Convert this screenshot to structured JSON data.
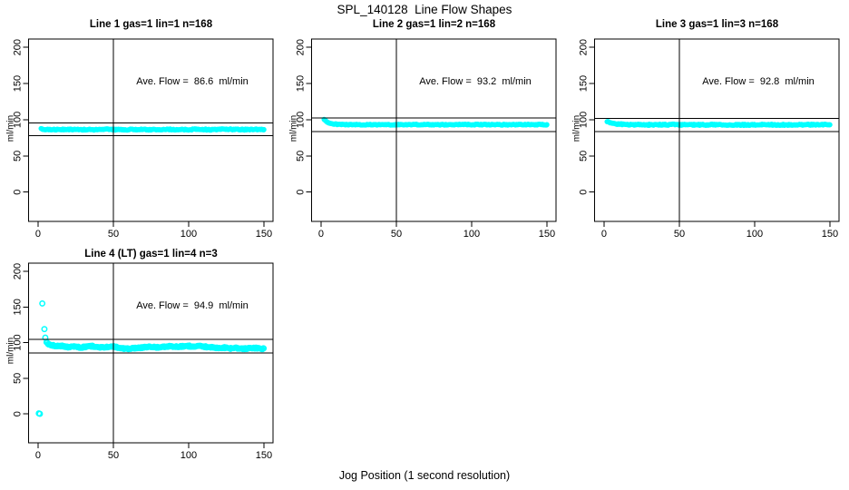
{
  "title": "SPL_140128  Line Flow Shapes",
  "xlabel": "Jog Position (1 second resolution)",
  "ylabel": "ml/min",
  "colors": {
    "points": "#00ffff",
    "axis": "#000000",
    "background": "#ffffff"
  },
  "chart_data": {
    "type": "scatter",
    "x_ticks": [
      0,
      50,
      100,
      150
    ],
    "y_ticks": [
      0,
      50,
      100,
      150,
      200
    ],
    "xlim": [
      -6.2,
      156.2
    ],
    "ylim": [
      -40.5,
      211.5
    ],
    "vline_x": 50,
    "point_color": "#00ffff",
    "grid": false,
    "panels": [
      {
        "id": "line-1",
        "title": "Line 1 gas=1 lin=1 n=168",
        "n": 168,
        "ave_flow": 86.6,
        "ave_flow_label": "Ave. Flow =  86.6  ml/min",
        "ref_lines": [
          95.3,
          77.9
        ],
        "outliers": [],
        "profile": [
          [
            2,
            88.5
          ],
          [
            3,
            86.5
          ],
          [
            5,
            86.2
          ],
          [
            15,
            86.4
          ],
          [
            25,
            86.7
          ],
          [
            35,
            86.2
          ],
          [
            45,
            86.6
          ],
          [
            55,
            86.2
          ],
          [
            65,
            86.6
          ],
          [
            75,
            86.3
          ],
          [
            85,
            86.7
          ],
          [
            95,
            86.2
          ],
          [
            105,
            86.6
          ],
          [
            115,
            86.3
          ],
          [
            125,
            86.7
          ],
          [
            135,
            86.3
          ],
          [
            145,
            86.6
          ],
          [
            150,
            86.4
          ]
        ]
      },
      {
        "id": "line-2",
        "title": "Line 2 gas=1 lin=2 n=168",
        "n": 168,
        "ave_flow": 93.2,
        "ave_flow_label": "Ave. Flow =  93.2  ml/min",
        "ref_lines": [
          102.5,
          83.9
        ],
        "outliers": [],
        "profile": [
          [
            2,
            101
          ],
          [
            3,
            98.5
          ],
          [
            4,
            96.8
          ],
          [
            5,
            95.6
          ],
          [
            6,
            94.8
          ],
          [
            8,
            94.2
          ],
          [
            10,
            93.8
          ],
          [
            14,
            93.4
          ],
          [
            20,
            93.2
          ],
          [
            35,
            93.2
          ],
          [
            50,
            93.1
          ],
          [
            65,
            93.3
          ],
          [
            80,
            93.1
          ],
          [
            95,
            93.3
          ],
          [
            110,
            93.2
          ],
          [
            125,
            93.1
          ],
          [
            140,
            93.3
          ],
          [
            150,
            93.2
          ]
        ]
      },
      {
        "id": "line-3",
        "title": "Line 3 gas=1 lin=3 n=168",
        "n": 168,
        "ave_flow": 92.8,
        "ave_flow_label": "Ave. Flow =  92.8  ml/min",
        "ref_lines": [
          102.1,
          83.5
        ],
        "outliers": [],
        "profile": [
          [
            2,
            98
          ],
          [
            3,
            96.8
          ],
          [
            4,
            95.8
          ],
          [
            6,
            94.8
          ],
          [
            8,
            94.2
          ],
          [
            12,
            93.6
          ],
          [
            18,
            93.2
          ],
          [
            30,
            93
          ],
          [
            45,
            93.2
          ],
          [
            60,
            92.9
          ],
          [
            75,
            93.1
          ],
          [
            90,
            92.8
          ],
          [
            105,
            93.2
          ],
          [
            120,
            92.9
          ],
          [
            135,
            93.1
          ],
          [
            150,
            93
          ]
        ]
      },
      {
        "id": "line-4",
        "title": "Line 4 (LT) gas=1 lin=4 n=3",
        "n": 3,
        "ave_flow": 94.9,
        "ave_flow_label": "Ave. Flow =  94.9  ml/min",
        "ref_lines": [
          104.4,
          85.4
        ],
        "outliers": [
          [
            0.5,
            0.8
          ],
          [
            1.2,
            0.2
          ],
          [
            2.8,
            155
          ],
          [
            4.2,
            119
          ],
          [
            4.8,
            107
          ]
        ],
        "profile": [
          [
            5.5,
            101.5
          ],
          [
            6.5,
            98.5
          ],
          [
            8,
            97
          ],
          [
            10,
            96
          ],
          [
            13,
            95
          ],
          [
            16,
            95.3
          ],
          [
            20,
            93.8
          ],
          [
            24,
            94.8
          ],
          [
            28,
            93.2
          ],
          [
            32,
            94.3
          ],
          [
            36,
            95
          ],
          [
            40,
            93.8
          ],
          [
            44,
            93.3
          ],
          [
            48,
            94.8
          ],
          [
            52,
            94
          ],
          [
            56,
            91.8
          ],
          [
            60,
            91.3
          ],
          [
            64,
            92.3
          ],
          [
            68,
            92.8
          ],
          [
            72,
            93.8
          ],
          [
            76,
            94.3
          ],
          [
            80,
            93.3
          ],
          [
            84,
            94.3
          ],
          [
            88,
            94.8
          ],
          [
            92,
            94.3
          ],
          [
            96,
            94.8
          ],
          [
            100,
            95.3
          ],
          [
            104,
            94.3
          ],
          [
            108,
            95.3
          ],
          [
            112,
            94
          ],
          [
            116,
            93.3
          ],
          [
            120,
            92.5
          ],
          [
            124,
            93
          ],
          [
            128,
            92
          ],
          [
            132,
            92.5
          ],
          [
            136,
            91.5
          ],
          [
            140,
            92
          ],
          [
            144,
            92.5
          ],
          [
            148,
            91.3
          ],
          [
            150,
            92
          ]
        ]
      }
    ]
  }
}
